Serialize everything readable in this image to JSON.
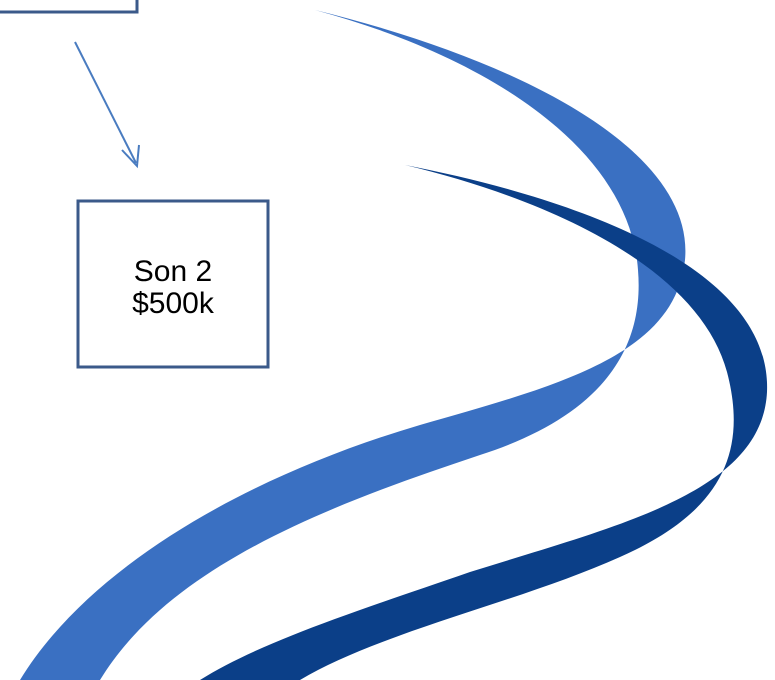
{
  "nodes": [
    {
      "label_lines": [
        "Son 2",
        "$500k"
      ]
    }
  ]
}
